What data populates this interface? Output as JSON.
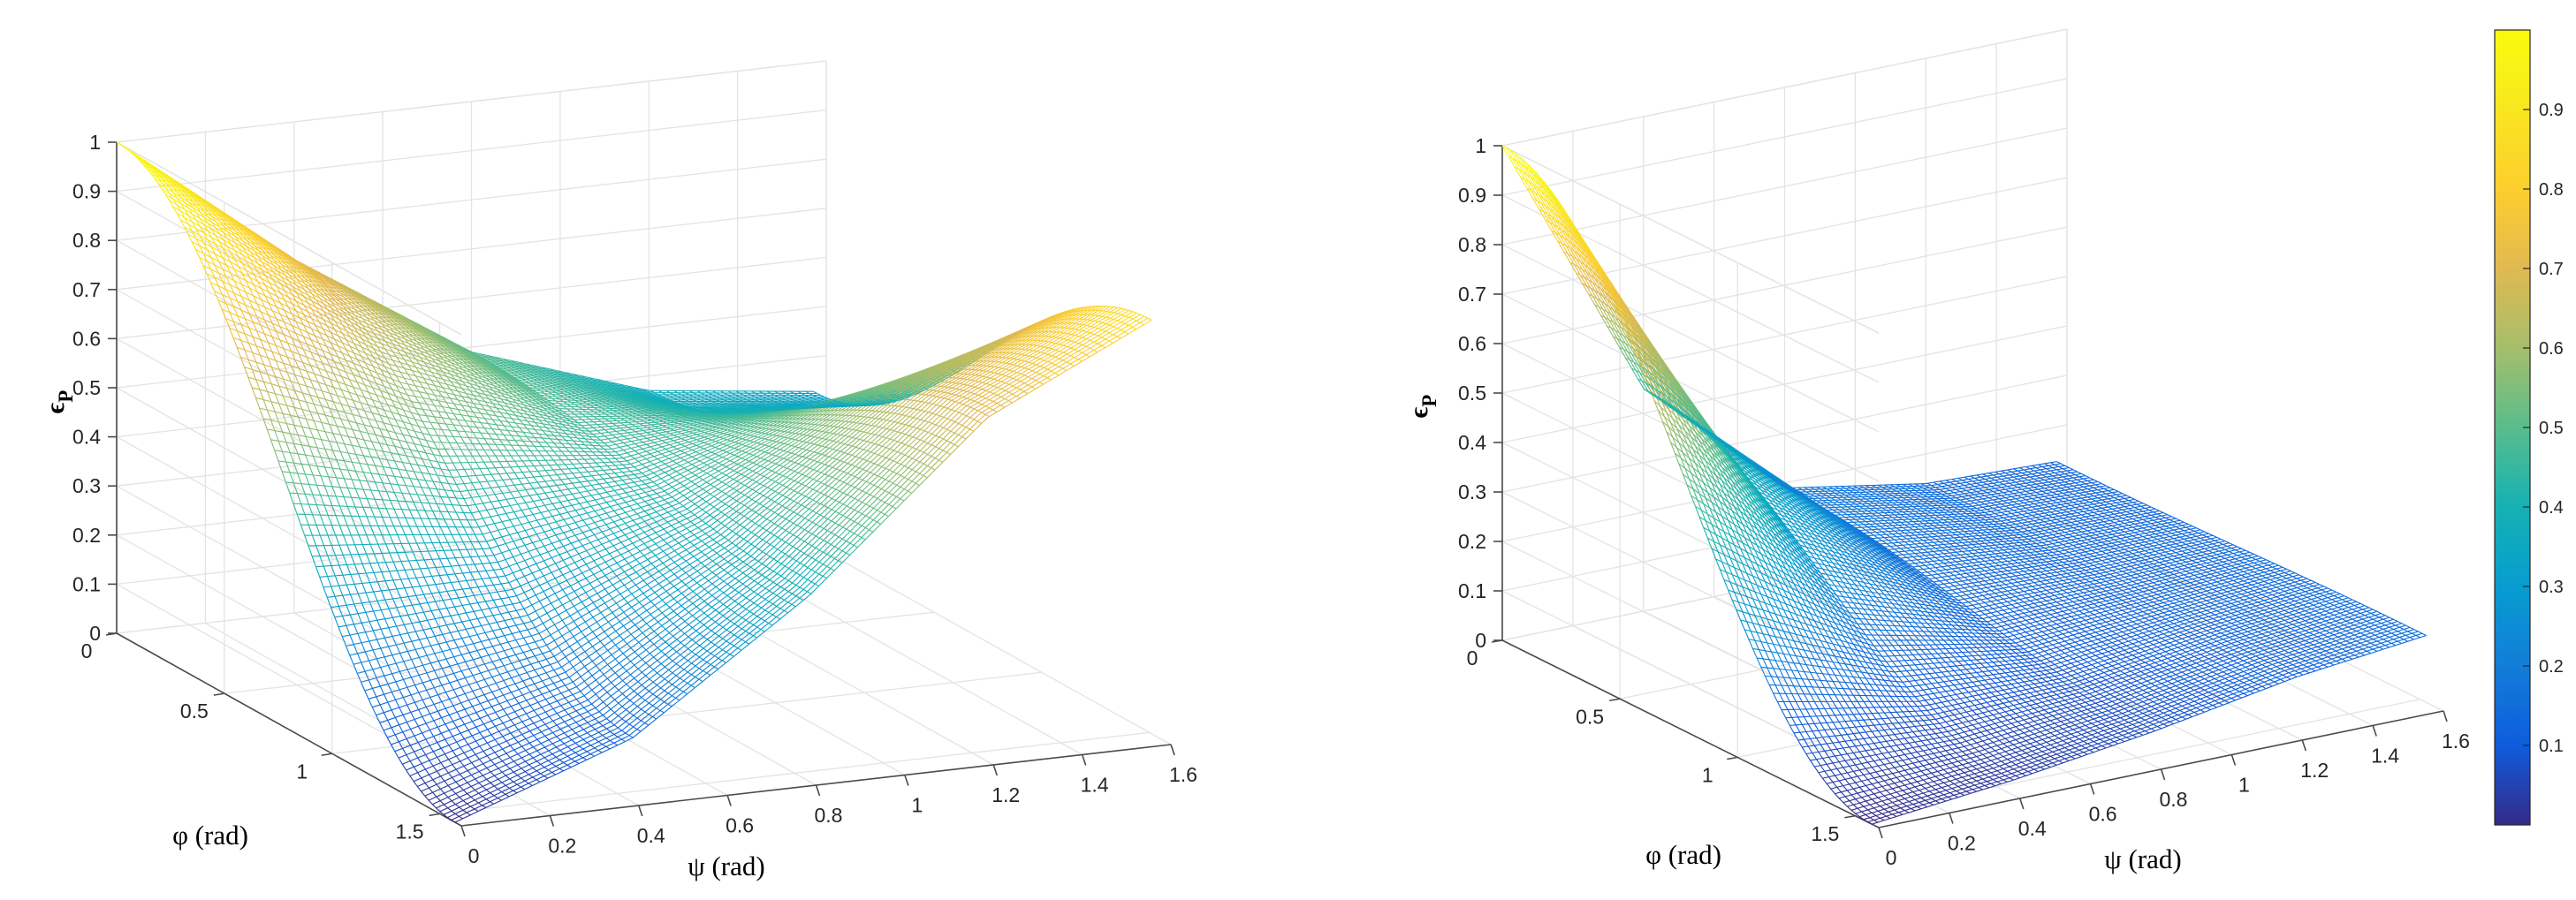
{
  "chart_data": [
    {
      "type": "surface",
      "title": "",
      "xlabel": "ψ (rad)",
      "ylabel": "φ (rad)",
      "zlabel": "ϵ",
      "zlabel_subscript": "P",
      "xlim": [
        0,
        1.6
      ],
      "ylim": [
        0,
        1.6
      ],
      "zlim": [
        0,
        1
      ],
      "x_ticks": [
        "0",
        "0.2",
        "0.4",
        "0.6",
        "0.8",
        "1",
        "1.2",
        "1.4",
        "1.6"
      ],
      "y_ticks": [
        "0",
        "0.5",
        "1",
        "1.5"
      ],
      "z_ticks": [
        "0",
        "0.1",
        "0.2",
        "0.3",
        "0.4",
        "0.5",
        "0.6",
        "0.7",
        "0.8",
        "0.9",
        "1"
      ],
      "grid": true,
      "colormap": "parula",
      "surface_samples": {
        "psi": [
          0,
          0.4,
          0.8,
          1.2,
          1.57
        ],
        "phi_0": [
          1.0,
          0.72,
          0.49,
          0.37,
          0.33
        ],
        "phi_1.57": [
          0.0,
          0.13,
          0.38,
          0.7,
          0.86
        ]
      }
    },
    {
      "type": "surface",
      "title": "",
      "xlabel": "ψ (rad)",
      "ylabel": "φ (rad)",
      "zlabel": "ϵ",
      "zlabel_subscript": "P",
      "xlim": [
        0,
        1.6
      ],
      "ylim": [
        0,
        1.6
      ],
      "zlim": [
        0,
        1
      ],
      "x_ticks": [
        "0",
        "0.2",
        "0.4",
        "0.6",
        "0.8",
        "1",
        "1.2",
        "1.4",
        "1.6"
      ],
      "y_ticks": [
        "0",
        "0.5",
        "1",
        "1.5"
      ],
      "z_ticks": [
        "0",
        "0.1",
        "0.2",
        "0.3",
        "0.4",
        "0.5",
        "0.6",
        "0.7",
        "0.8",
        "0.9",
        "1"
      ],
      "grid": true,
      "colormap": "parula",
      "surface_samples": {
        "psi": [
          0,
          0.4,
          0.8,
          1.2,
          1.57
        ],
        "phi_0": [
          1.0,
          0.45,
          0.19,
          0.14,
          0.13
        ],
        "phi_1.57": [
          0.0,
          0.03,
          0.07,
          0.12,
          0.15
        ]
      }
    }
  ],
  "colorbar": {
    "colormap": "parula",
    "range": [
      0,
      1
    ],
    "ticks": [
      "0.1",
      "0.2",
      "0.3",
      "0.4",
      "0.5",
      "0.6",
      "0.7",
      "0.8",
      "0.9"
    ],
    "tick_values": [
      0.1,
      0.2,
      0.3,
      0.4,
      0.5,
      0.6,
      0.7,
      0.8,
      0.9
    ]
  }
}
